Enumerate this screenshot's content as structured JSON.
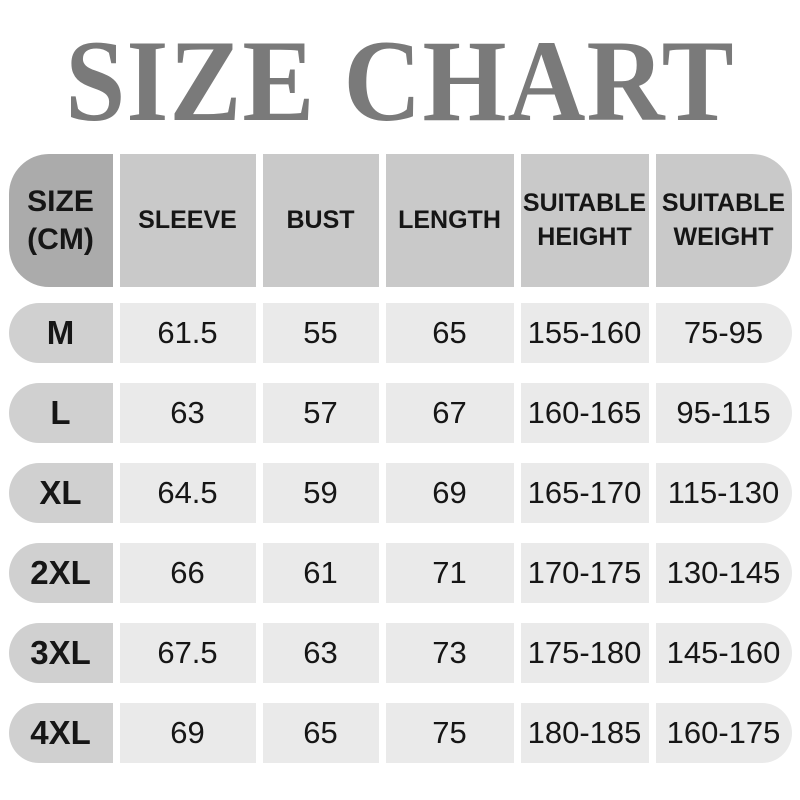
{
  "title": "SIZE CHART",
  "colors": {
    "title_gray": "#7a7a7a",
    "header_first_cell_bg": "#ababab",
    "header_cell_bg": "#c9c9c9",
    "row_first_cell_bg": "#d0d0d0",
    "row_cell_bg": "#eaeaea",
    "text": "#161616",
    "background": "#ffffff"
  },
  "chart_data": {
    "type": "table",
    "title": "SIZE CHART",
    "unit": "CM",
    "columns": [
      "SIZE (CM)",
      "SLEEVE",
      "BUST",
      "LENGTH",
      "SUITABLE HEIGHT",
      "SUITABLE WEIGHT"
    ],
    "rows": [
      [
        "M",
        "61.5",
        "55",
        "65",
        "155-160",
        "75-95"
      ],
      [
        "L",
        "63",
        "57",
        "67",
        "160-165",
        "95-115"
      ],
      [
        "XL",
        "64.5",
        "59",
        "69",
        "165-170",
        "115-130"
      ],
      [
        "2XL",
        "66",
        "61",
        "71",
        "170-175",
        "130-145"
      ],
      [
        "3XL",
        "67.5",
        "63",
        "73",
        "175-180",
        "145-160"
      ],
      [
        "4XL",
        "69",
        "65",
        "75",
        "180-185",
        "160-175"
      ]
    ]
  }
}
